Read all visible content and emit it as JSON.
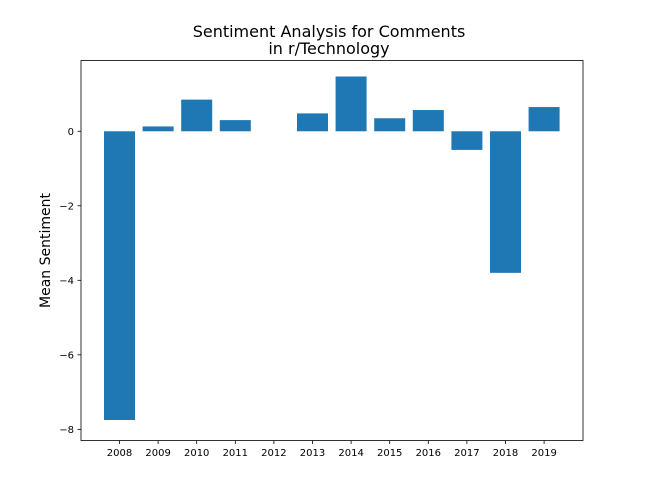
{
  "chart_data": {
    "type": "bar",
    "title_line1": "Sentiment Analysis for Comments",
    "title_line2": "in r/Technology",
    "xlabel": "",
    "ylabel": "Mean Sentiment",
    "categories": [
      "2008",
      "2009",
      "2010",
      "2011",
      "2012",
      "2013",
      "2014",
      "2015",
      "2016",
      "2017",
      "2018",
      "2019"
    ],
    "values": [
      -7.75,
      0.13,
      0.85,
      0.3,
      0.0,
      0.48,
      1.47,
      0.35,
      0.57,
      -0.5,
      -3.8,
      0.65
    ],
    "ylim": [
      -8.3,
      1.9
    ],
    "yticks": [
      0,
      -2,
      -4,
      -6,
      -8
    ],
    "ytick_labels": [
      "0",
      "−2",
      "−4",
      "−6",
      "−8"
    ],
    "grid": false,
    "bar_color": "#1f77b4"
  }
}
